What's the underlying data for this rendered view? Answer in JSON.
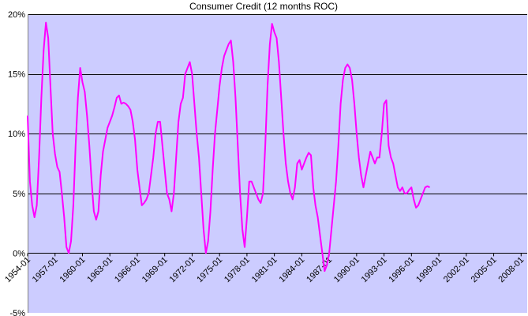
{
  "chart_data": {
    "type": "line",
    "title": "Consumer Credit (12 months ROC)",
    "xlabel": "",
    "ylabel": "",
    "ylim": [
      -5,
      20
    ],
    "y_ticks": [
      -5,
      0,
      5,
      10,
      15,
      20
    ],
    "y_tick_labels": [
      "-5%",
      "0%",
      "5%",
      "10%",
      "15%",
      "20%"
    ],
    "x_range": [
      "1954-01",
      "2008-09"
    ],
    "x_tick_labels": [
      "1954-01",
      "1957-01",
      "1960-01",
      "1963-01",
      "1966-01",
      "1969-01",
      "1972-01",
      "1975-01",
      "1978-01",
      "1981-01",
      "1984-01",
      "1987-01",
      "1990-01",
      "1993-01",
      "1996-01",
      "1999-01",
      "2002-01",
      "2005-01",
      "2008-01"
    ],
    "grid": "horizontal",
    "legend": "none",
    "colors": {
      "plot_background": "#ccccff",
      "series": "#ff00ff",
      "gridline": "#000000"
    },
    "series": [
      {
        "points": [
          [
            "1954-01",
            11.5
          ],
          [
            "1954-04",
            6.0
          ],
          [
            "1954-07",
            4.0
          ],
          [
            "1954-10",
            3.0
          ],
          [
            "1955-01",
            4.0
          ],
          [
            "1955-04",
            8.0
          ],
          [
            "1955-07",
            13.0
          ],
          [
            "1955-10",
            17.0
          ],
          [
            "1956-01",
            19.3
          ],
          [
            "1956-04",
            18.0
          ],
          [
            "1956-07",
            14.0
          ],
          [
            "1956-10",
            10.0
          ],
          [
            "1957-01",
            8.3
          ],
          [
            "1957-04",
            7.2
          ],
          [
            "1957-07",
            6.8
          ],
          [
            "1957-10",
            5.0
          ],
          [
            "1958-01",
            3.0
          ],
          [
            "1958-04",
            0.5
          ],
          [
            "1958-07",
            0.0
          ],
          [
            "1958-10",
            1.0
          ],
          [
            "1959-01",
            4.0
          ],
          [
            "1959-04",
            9.0
          ],
          [
            "1959-07",
            13.0
          ],
          [
            "1959-10",
            15.5
          ],
          [
            "1960-01",
            14.3
          ],
          [
            "1960-04",
            13.5
          ],
          [
            "1960-07",
            11.5
          ],
          [
            "1960-10",
            9.0
          ],
          [
            "1961-01",
            6.0
          ],
          [
            "1961-04",
            3.5
          ],
          [
            "1961-07",
            2.8
          ],
          [
            "1961-10",
            3.5
          ],
          [
            "1962-01",
            6.5
          ],
          [
            "1962-04",
            8.5
          ],
          [
            "1962-07",
            9.5
          ],
          [
            "1962-10",
            10.5
          ],
          [
            "1963-01",
            11.0
          ],
          [
            "1963-04",
            11.5
          ],
          [
            "1963-07",
            12.2
          ],
          [
            "1963-10",
            13.0
          ],
          [
            "1964-01",
            13.2
          ],
          [
            "1964-04",
            12.5
          ],
          [
            "1964-07",
            12.6
          ],
          [
            "1964-10",
            12.5
          ],
          [
            "1965-01",
            12.3
          ],
          [
            "1965-04",
            12.0
          ],
          [
            "1965-07",
            11.0
          ],
          [
            "1965-10",
            9.5
          ],
          [
            "1966-01",
            7.0
          ],
          [
            "1966-04",
            5.5
          ],
          [
            "1966-07",
            4.0
          ],
          [
            "1966-10",
            4.2
          ],
          [
            "1967-01",
            4.5
          ],
          [
            "1967-04",
            5.0
          ],
          [
            "1967-07",
            6.5
          ],
          [
            "1967-10",
            8.0
          ],
          [
            "1968-01",
            10.0
          ],
          [
            "1968-04",
            11.0
          ],
          [
            "1968-07",
            11.0
          ],
          [
            "1968-10",
            9.0
          ],
          [
            "1969-01",
            7.0
          ],
          [
            "1969-04",
            5.0
          ],
          [
            "1969-07",
            4.5
          ],
          [
            "1969-10",
            3.5
          ],
          [
            "1970-01",
            5.0
          ],
          [
            "1970-04",
            8.0
          ],
          [
            "1970-07",
            11.0
          ],
          [
            "1970-10",
            12.5
          ],
          [
            "1971-01",
            13.0
          ],
          [
            "1971-04",
            15.0
          ],
          [
            "1971-07",
            15.5
          ],
          [
            "1971-10",
            16.0
          ],
          [
            "1972-01",
            15.0
          ],
          [
            "1972-04",
            12.5
          ],
          [
            "1972-07",
            10.0
          ],
          [
            "1972-10",
            8.0
          ],
          [
            "1973-01",
            5.0
          ],
          [
            "1973-04",
            2.0
          ],
          [
            "1973-07",
            0.0
          ],
          [
            "1973-10",
            1.0
          ],
          [
            "1974-01",
            3.5
          ],
          [
            "1974-04",
            7.0
          ],
          [
            "1974-07",
            10.0
          ],
          [
            "1974-10",
            12.0
          ],
          [
            "1975-01",
            14.0
          ],
          [
            "1975-04",
            15.5
          ],
          [
            "1975-07",
            16.5
          ],
          [
            "1975-10",
            17.0
          ],
          [
            "1976-01",
            17.5
          ],
          [
            "1976-04",
            17.8
          ],
          [
            "1976-07",
            16.0
          ],
          [
            "1976-10",
            13.0
          ],
          [
            "1977-01",
            9.0
          ],
          [
            "1977-04",
            5.0
          ],
          [
            "1977-07",
            2.0
          ],
          [
            "1977-10",
            0.5
          ],
          [
            "1978-01",
            3.0
          ],
          [
            "1978-04",
            6.0
          ],
          [
            "1978-07",
            6.0
          ],
          [
            "1978-10",
            5.5
          ],
          [
            "1979-01",
            5.0
          ],
          [
            "1979-04",
            4.5
          ],
          [
            "1979-07",
            4.2
          ],
          [
            "1979-10",
            5.0
          ],
          [
            "1980-01",
            9.0
          ],
          [
            "1980-04",
            14.0
          ],
          [
            "1980-07",
            17.5
          ],
          [
            "1980-10",
            19.2
          ],
          [
            "1981-01",
            18.5
          ],
          [
            "1981-04",
            18.0
          ],
          [
            "1981-07",
            16.0
          ],
          [
            "1981-10",
            13.0
          ],
          [
            "1982-01",
            10.0
          ],
          [
            "1982-04",
            7.5
          ],
          [
            "1982-07",
            6.0
          ],
          [
            "1982-10",
            5.0
          ],
          [
            "1983-01",
            4.5
          ],
          [
            "1983-04",
            5.5
          ],
          [
            "1983-07",
            7.5
          ],
          [
            "1983-10",
            7.8
          ],
          [
            "1984-01",
            7.0
          ],
          [
            "1984-04",
            7.5
          ],
          [
            "1984-07",
            8.0
          ],
          [
            "1984-10",
            8.4
          ],
          [
            "1985-01",
            8.2
          ],
          [
            "1985-04",
            5.5
          ],
          [
            "1985-07",
            4.0
          ],
          [
            "1985-10",
            3.0
          ],
          [
            "1986-01",
            1.5
          ],
          [
            "1986-04",
            0.0
          ],
          [
            "1986-07",
            -1.5
          ],
          [
            "1986-10",
            -1.0
          ],
          [
            "1987-01",
            0.0
          ],
          [
            "1987-04",
            2.0
          ],
          [
            "1987-07",
            4.0
          ],
          [
            "1987-10",
            6.0
          ],
          [
            "1988-01",
            9.0
          ],
          [
            "1988-04",
            12.5
          ],
          [
            "1988-07",
            14.5
          ],
          [
            "1988-10",
            15.5
          ],
          [
            "1989-01",
            15.8
          ],
          [
            "1989-04",
            15.5
          ],
          [
            "1989-07",
            14.5
          ],
          [
            "1989-10",
            12.5
          ],
          [
            "1990-01",
            10.0
          ],
          [
            "1990-04",
            8.0
          ],
          [
            "1990-07",
            6.5
          ],
          [
            "1990-10",
            5.5
          ],
          [
            "1991-01",
            6.5
          ],
          [
            "1991-04",
            7.5
          ],
          [
            "1991-07",
            8.5
          ],
          [
            "1991-10",
            8.0
          ],
          [
            "1992-01",
            7.5
          ],
          [
            "1992-04",
            8.0
          ],
          [
            "1992-07",
            8.0
          ],
          [
            "1992-10",
            10.0
          ],
          [
            "1993-01",
            12.5
          ],
          [
            "1993-04",
            12.8
          ],
          [
            "1993-07",
            9.0
          ],
          [
            "1993-10",
            8.0
          ],
          [
            "1994-01",
            7.5
          ],
          [
            "1994-04",
            6.5
          ],
          [
            "1994-07",
            5.5
          ],
          [
            "1994-10",
            5.2
          ],
          [
            "1995-01",
            5.5
          ],
          [
            "1995-04",
            5.0
          ],
          [
            "1995-07",
            5.0
          ],
          [
            "1995-10",
            5.3
          ],
          [
            "1996-01",
            5.5
          ],
          [
            "1996-04",
            4.5
          ],
          [
            "1996-07",
            3.8
          ],
          [
            "1996-10",
            4.0
          ],
          [
            "1997-01",
            4.5
          ],
          [
            "1997-04",
            5.0
          ],
          [
            "1997-07",
            5.5
          ],
          [
            "1997-10",
            5.6
          ],
          [
            "1998-01",
            5.5
          ]
        ]
      }
    ]
  }
}
